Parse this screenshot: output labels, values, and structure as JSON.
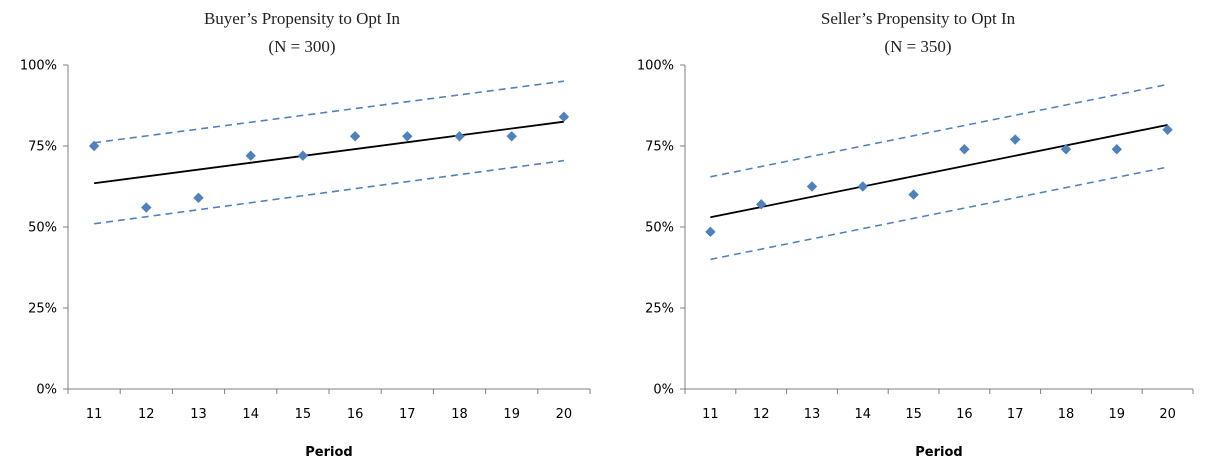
{
  "chart_data": [
    {
      "type": "scatter",
      "title": "Buyer’s Propensity to Opt In",
      "subtitle": "(N = 300)",
      "xlabel": "Period",
      "ylabel": "",
      "x": [
        11,
        12,
        13,
        14,
        15,
        16,
        17,
        18,
        19,
        20
      ],
      "y": [
        75,
        56,
        59,
        72,
        72,
        78,
        78,
        78,
        78,
        84
      ],
      "trend": {
        "x": [
          11,
          20
        ],
        "y": [
          63.5,
          82.5
        ]
      },
      "upper_band": {
        "x": [
          11,
          20
        ],
        "y": [
          76,
          95
        ]
      },
      "lower_band": {
        "x": [
          11,
          20
        ],
        "y": [
          51,
          70.5
        ]
      },
      "xlim": [
        10.5,
        20.5
      ],
      "ylim": [
        0,
        100
      ],
      "yticks": [
        0,
        25,
        50,
        75,
        100
      ],
      "ytick_labels": [
        "0%",
        "25%",
        "50%",
        "75%",
        "100%"
      ],
      "xtick_labels": [
        "11",
        "12",
        "13",
        "14",
        "15",
        "16",
        "17",
        "18",
        "19",
        "20"
      ],
      "grid": false,
      "point_color": "#4f81bd",
      "trend_color": "#000000",
      "band_color": "#4f81bd"
    },
    {
      "type": "scatter",
      "title": "Seller’s Propensity to Opt In",
      "subtitle": "(N = 350)",
      "xlabel": "Period",
      "ylabel": "",
      "x": [
        11,
        12,
        13,
        14,
        15,
        16,
        17,
        18,
        19,
        20
      ],
      "y": [
        48.5,
        57,
        62.5,
        62.5,
        60,
        74,
        77,
        74,
        74,
        80
      ],
      "trend": {
        "x": [
          11,
          20
        ],
        "y": [
          53,
          81.5
        ]
      },
      "upper_band": {
        "x": [
          11,
          20
        ],
        "y": [
          65.5,
          94
        ]
      },
      "lower_band": {
        "x": [
          11,
          20
        ],
        "y": [
          40,
          68.5
        ]
      },
      "xlim": [
        10.5,
        20.5
      ],
      "ylim": [
        0,
        100
      ],
      "yticks": [
        0,
        25,
        50,
        75,
        100
      ],
      "ytick_labels": [
        "0%",
        "25%",
        "50%",
        "75%",
        "100%"
      ],
      "xtick_labels": [
        "11",
        "12",
        "13",
        "14",
        "15",
        "16",
        "17",
        "18",
        "19",
        "20"
      ],
      "grid": false,
      "point_color": "#4f81bd",
      "trend_color": "#000000",
      "band_color": "#4f81bd"
    }
  ]
}
